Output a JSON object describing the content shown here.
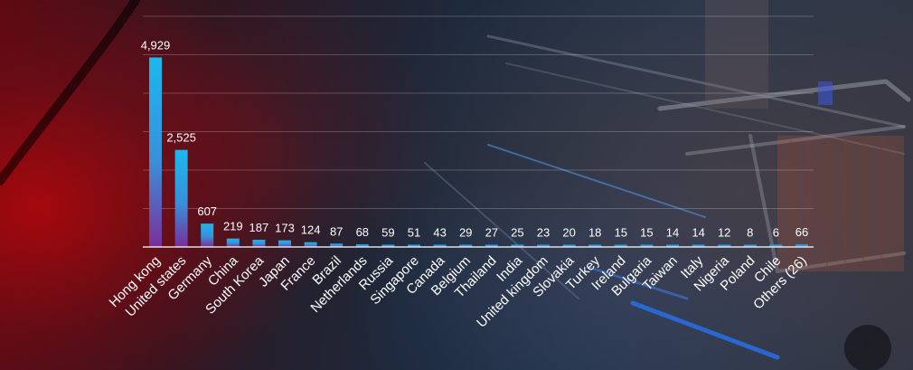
{
  "chart_data": {
    "type": "bar",
    "categories": [
      "Hong kong",
      "United states",
      "Germany",
      "China",
      "South Korea",
      "Japan",
      "France",
      "Brazil",
      "Netherlands",
      "Russia",
      "Singapore",
      "Canada",
      "Belgium",
      "Thailand",
      "India",
      "United kingdom",
      "Slovakia",
      "Turkey",
      "Ireland",
      "Bulgaria",
      "Taiwan",
      "Italy",
      "Nigeria",
      "Poland",
      "Chile",
      "Others (26)"
    ],
    "values": [
      4929,
      2525,
      607,
      219,
      187,
      173,
      124,
      87,
      68,
      59,
      51,
      43,
      29,
      27,
      25,
      23,
      20,
      18,
      15,
      15,
      14,
      14,
      12,
      8,
      6,
      66
    ],
    "value_labels": [
      "4,929",
      "2,525",
      "607",
      "219",
      "187",
      "173",
      "124",
      "87",
      "68",
      "59",
      "51",
      "43",
      "29",
      "27",
      "25",
      "23",
      "20",
      "18",
      "15",
      "15",
      "14",
      "14",
      "12",
      "8",
      "6",
      "66"
    ],
    "title": "",
    "xlabel": "",
    "ylabel": "",
    "ylim": [
      0,
      6000
    ],
    "gridlines": [
      0,
      1000,
      2000,
      3000,
      4000,
      5000,
      6000
    ],
    "grid": true,
    "legend": "none",
    "colors": {
      "bar_top": "#1ab8ef",
      "bar_bottom": "#7a2e9a",
      "gridline": "#ffffff",
      "text": "#ffffff"
    }
  }
}
